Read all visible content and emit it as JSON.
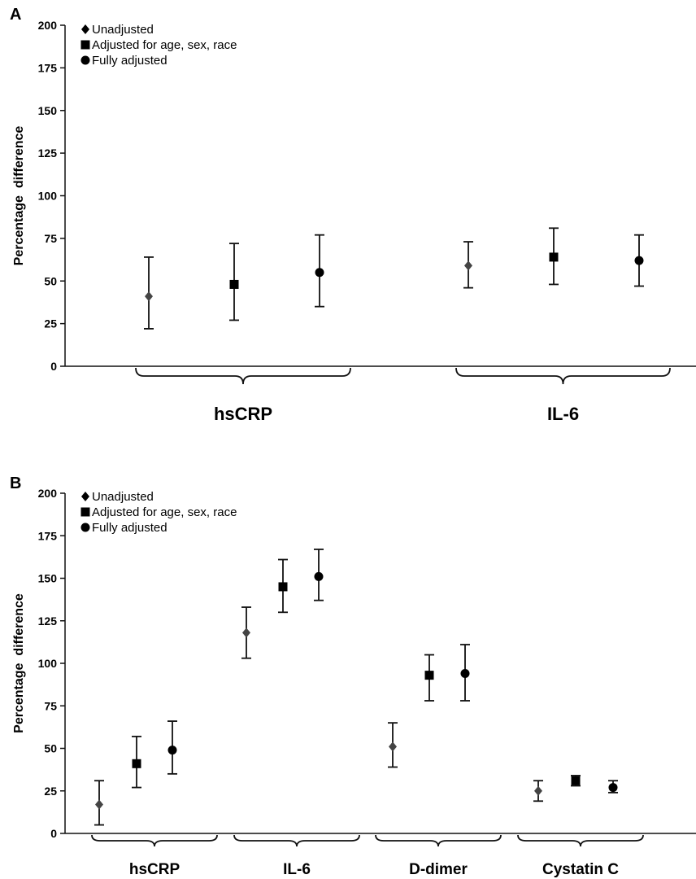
{
  "chart_data": [
    {
      "panel_label": "A",
      "type": "scatter",
      "ylabel": "Percentage  difference",
      "ylim": [
        0,
        200
      ],
      "yticks": [
        0,
        25,
        50,
        75,
        100,
        125,
        150,
        175,
        200
      ],
      "legend": [
        "Unadjusted",
        "Adjusted for age, sex, race",
        "Fully adjusted"
      ],
      "legend_position": "top-left",
      "groups": [
        "hsCRP",
        "IL-6"
      ],
      "series": [
        {
          "name": "Unadjusted",
          "marker": "diamond",
          "color": "#444444",
          "values": [
            41,
            59
          ],
          "lower": [
            22,
            46
          ],
          "upper": [
            64,
            73
          ]
        },
        {
          "name": "Adjusted for age, sex, race",
          "marker": "square",
          "color": "#000000",
          "values": [
            48,
            64
          ],
          "lower": [
            27,
            48
          ],
          "upper": [
            72,
            81
          ]
        },
        {
          "name": "Fully adjusted",
          "marker": "circle",
          "color": "#000000",
          "values": [
            55,
            62
          ],
          "lower": [
            35,
            47
          ],
          "upper": [
            77,
            77
          ]
        }
      ]
    },
    {
      "panel_label": "B",
      "type": "scatter",
      "ylabel": "Percentage  difference",
      "ylim": [
        0,
        200
      ],
      "yticks": [
        0,
        25,
        50,
        75,
        100,
        125,
        150,
        175,
        200
      ],
      "legend": [
        "Unadjusted",
        "Adjusted for age, sex, race",
        "Fully adjusted"
      ],
      "legend_position": "top-left",
      "groups": [
        "hsCRP",
        "IL-6",
        "D-dimer",
        "Cystatin C"
      ],
      "series": [
        {
          "name": "Unadjusted",
          "marker": "diamond",
          "color": "#444444",
          "values": [
            17,
            118,
            51,
            25
          ],
          "lower": [
            5,
            103,
            39,
            19
          ],
          "upper": [
            31,
            133,
            65,
            31
          ]
        },
        {
          "name": "Adjusted for age, sex, race",
          "marker": "square",
          "color": "#000000",
          "values": [
            41,
            145,
            93,
            31
          ],
          "lower": [
            27,
            130,
            78,
            28
          ],
          "upper": [
            57,
            161,
            105,
            34
          ]
        },
        {
          "name": "Fully adjusted",
          "marker": "circle",
          "color": "#000000",
          "values": [
            49,
            151,
            94,
            27
          ],
          "lower": [
            35,
            137,
            78,
            24
          ],
          "upper": [
            66,
            167,
            111,
            31
          ]
        }
      ]
    }
  ]
}
